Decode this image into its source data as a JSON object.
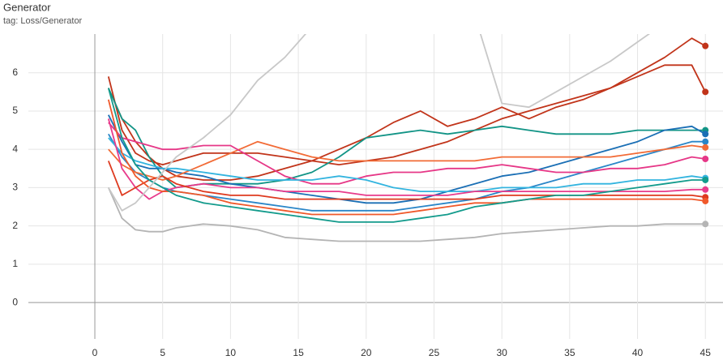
{
  "chart_data": {
    "type": "line",
    "title": "Generator",
    "subtitle": "tag: Loss/Generator",
    "x": [
      1,
      2,
      3,
      4,
      5,
      6,
      8,
      10,
      12,
      14,
      16,
      18,
      20,
      22,
      24,
      26,
      28,
      30,
      32,
      34,
      36,
      38,
      40,
      42,
      44,
      45
    ],
    "xlim": [
      -4.9,
      46.3
    ],
    "xticks": [
      0,
      5,
      10,
      15,
      20,
      25,
      30,
      35,
      40,
      45
    ],
    "ylim": [
      -0.95,
      7.01
    ],
    "yticks": [
      0,
      1,
      2,
      3,
      4,
      5,
      6
    ],
    "grid": true,
    "series": [
      {
        "color": "#c1341a",
        "values": [
          5.6,
          4.8,
          4.2,
          3.8,
          3.5,
          3.3,
          3.2,
          3.2,
          3.3,
          3.5,
          3.7,
          4.0,
          4.3,
          4.7,
          5.0,
          4.6,
          4.8,
          5.1,
          4.8,
          5.1,
          5.3,
          5.6,
          6.0,
          6.4,
          6.9,
          6.7
        ]
      },
      {
        "color": "#c1341a",
        "values": [
          5.9,
          4.5,
          3.9,
          3.7,
          3.6,
          3.7,
          3.9,
          3.9,
          3.9,
          3.8,
          3.7,
          3.6,
          3.7,
          3.8,
          4.0,
          4.2,
          4.5,
          4.8,
          5.0,
          5.2,
          5.4,
          5.6,
          5.9,
          6.2,
          6.2,
          5.5
        ]
      },
      {
        "color": "#129486",
        "values": [
          5.6,
          4.8,
          4.5,
          3.8,
          3.3,
          3.0,
          3.1,
          3.1,
          3.1,
          3.2,
          3.4,
          3.8,
          4.3,
          4.4,
          4.5,
          4.4,
          4.5,
          4.6,
          4.5,
          4.4,
          4.4,
          4.4,
          4.5,
          4.5,
          4.5,
          4.5
        ]
      },
      {
        "color": "#1a6fb5",
        "values": [
          4.9,
          4.2,
          3.6,
          3.5,
          3.5,
          3.4,
          3.3,
          3.1,
          3.0,
          2.9,
          2.8,
          2.7,
          2.6,
          2.6,
          2.7,
          2.9,
          3.1,
          3.3,
          3.4,
          3.6,
          3.8,
          4.0,
          4.2,
          4.5,
          4.6,
          4.4
        ]
      },
      {
        "color": "#2a86c8",
        "values": [
          4.4,
          3.8,
          3.4,
          3.2,
          3.0,
          2.9,
          2.8,
          2.7,
          2.6,
          2.5,
          2.4,
          2.4,
          2.4,
          2.4,
          2.5,
          2.6,
          2.7,
          2.9,
          3.0,
          3.2,
          3.4,
          3.6,
          3.8,
          4.0,
          4.2,
          4.2
        ]
      },
      {
        "color": "#f26b36",
        "values": [
          4.0,
          3.6,
          3.4,
          3.3,
          3.2,
          3.3,
          3.6,
          3.9,
          4.2,
          4.0,
          3.8,
          3.7,
          3.7,
          3.7,
          3.7,
          3.7,
          3.7,
          3.8,
          3.8,
          3.8,
          3.8,
          3.8,
          3.9,
          4.0,
          4.1,
          4.05
        ]
      },
      {
        "color": "#e63787",
        "values": [
          4.7,
          4.3,
          4.2,
          4.1,
          4.0,
          4.0,
          4.1,
          4.1,
          3.7,
          3.3,
          3.1,
          3.1,
          3.3,
          3.4,
          3.4,
          3.5,
          3.5,
          3.6,
          3.5,
          3.4,
          3.4,
          3.5,
          3.5,
          3.6,
          3.8,
          3.75
        ]
      },
      {
        "color": "#33b4df",
        "values": [
          4.3,
          3.9,
          3.7,
          3.6,
          3.5,
          3.5,
          3.4,
          3.3,
          3.2,
          3.2,
          3.2,
          3.3,
          3.2,
          3.0,
          2.9,
          2.9,
          2.9,
          3.0,
          3.0,
          3.0,
          3.1,
          3.1,
          3.2,
          3.2,
          3.3,
          3.25
        ]
      },
      {
        "color": "#e83b8c",
        "values": [
          4.8,
          3.5,
          3.0,
          2.7,
          2.9,
          3.0,
          3.1,
          3.0,
          3.0,
          2.9,
          2.9,
          2.9,
          2.8,
          2.8,
          2.8,
          2.8,
          2.9,
          2.9,
          2.9,
          2.9,
          2.9,
          2.9,
          2.9,
          2.9,
          2.95,
          2.95
        ]
      },
      {
        "color": "#de3a1f",
        "values": [
          3.7,
          2.8,
          3.0,
          3.2,
          3.3,
          3.1,
          2.9,
          2.8,
          2.8,
          2.7,
          2.7,
          2.7,
          2.7,
          2.7,
          2.7,
          2.7,
          2.7,
          2.8,
          2.8,
          2.8,
          2.8,
          2.8,
          2.8,
          2.8,
          2.8,
          2.75
        ]
      },
      {
        "color": "#f0592b",
        "values": [
          5.3,
          3.9,
          3.3,
          3.0,
          2.9,
          2.9,
          2.8,
          2.6,
          2.5,
          2.4,
          2.3,
          2.3,
          2.3,
          2.3,
          2.4,
          2.5,
          2.6,
          2.6,
          2.7,
          2.7,
          2.7,
          2.7,
          2.7,
          2.7,
          2.7,
          2.65
        ]
      },
      {
        "color": "#139b8c",
        "values": [
          5.6,
          4.3,
          3.6,
          3.2,
          3.0,
          2.8,
          2.6,
          2.5,
          2.4,
          2.3,
          2.2,
          2.1,
          2.1,
          2.1,
          2.2,
          2.3,
          2.5,
          2.6,
          2.7,
          2.8,
          2.8,
          2.9,
          3.0,
          3.1,
          3.2,
          3.2
        ]
      },
      {
        "color": "#b4b4b4",
        "values": [
          3.0,
          2.2,
          1.9,
          1.85,
          1.85,
          1.95,
          2.05,
          2.0,
          1.9,
          1.7,
          1.65,
          1.6,
          1.6,
          1.6,
          1.6,
          1.65,
          1.7,
          1.8,
          1.85,
          1.9,
          1.95,
          2.0,
          2.0,
          2.05,
          2.05,
          2.05
        ]
      },
      {
        "color": "#c8c8c8",
        "values": [
          3.0,
          2.4,
          2.6,
          3.0,
          3.4,
          3.8,
          4.3,
          4.9,
          5.8,
          6.4,
          7.2,
          8.0,
          null,
          null,
          null,
          null,
          7.5,
          5.2,
          5.1,
          5.5,
          5.9,
          6.3,
          6.8,
          7.3,
          7.8,
          null
        ]
      }
    ]
  }
}
